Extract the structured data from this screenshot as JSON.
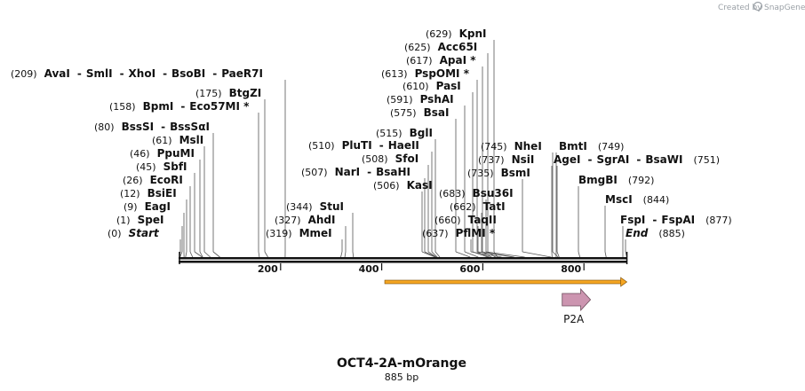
{
  "credit": {
    "prefix": "Created by",
    "brand": "SnapGene"
  },
  "title": "OCT4-2A-mOrange",
  "length_label": "885 bp",
  "ruler": {
    "start": 0,
    "end": 885,
    "ticks": [
      200,
      400,
      600,
      800
    ]
  },
  "sites": [
    {
      "pos": "(0)",
      "coord": 0,
      "names": [
        "Start"
      ],
      "italic": true
    },
    {
      "pos": "(1)",
      "coord": 1,
      "names": [
        "SpeI"
      ]
    },
    {
      "pos": "(9)",
      "coord": 9,
      "names": [
        "EagI"
      ]
    },
    {
      "pos": "(12)",
      "coord": 12,
      "names": [
        "BsiEI"
      ]
    },
    {
      "pos": "(26)",
      "coord": 26,
      "names": [
        "EcoRI"
      ]
    },
    {
      "pos": "(45)",
      "coord": 45,
      "names": [
        "SbfI"
      ]
    },
    {
      "pos": "(46)",
      "coord": 46,
      "names": [
        "PpuMI"
      ]
    },
    {
      "pos": "(61)",
      "coord": 61,
      "names": [
        "MslI"
      ]
    },
    {
      "pos": "(80)",
      "coord": 80,
      "names": [
        "BssSI",
        "BssSαI"
      ]
    },
    {
      "pos": "(158)",
      "coord": 158,
      "names": [
        "BpmI",
        "Eco57MI *"
      ]
    },
    {
      "pos": "(175)",
      "coord": 175,
      "names": [
        "BtgZI"
      ]
    },
    {
      "pos": "(209)",
      "coord": 209,
      "names": [
        "AvaI",
        "SmlI",
        "XhoI",
        "BsoBI",
        "PaeR7I"
      ]
    },
    {
      "pos": "(319)",
      "coord": 319,
      "names": [
        "MmeI"
      ]
    },
    {
      "pos": "(327)",
      "coord": 327,
      "names": [
        "AhdI"
      ]
    },
    {
      "pos": "(344)",
      "coord": 344,
      "names": [
        "StuI"
      ]
    },
    {
      "pos": "(506)",
      "coord": 506,
      "names": [
        "KasI"
      ]
    },
    {
      "pos": "(507)",
      "coord": 507,
      "names": [
        "NarI",
        "BsaHI"
      ]
    },
    {
      "pos": "(508)",
      "coord": 508,
      "names": [
        "SfoI"
      ]
    },
    {
      "pos": "(510)",
      "coord": 510,
      "names": [
        "PluTI",
        "HaeII"
      ]
    },
    {
      "pos": "(515)",
      "coord": 515,
      "names": [
        "BglI"
      ]
    },
    {
      "pos": "(575)",
      "coord": 575,
      "names": [
        "BsaI"
      ]
    },
    {
      "pos": "(591)",
      "coord": 591,
      "names": [
        "PshAI"
      ]
    },
    {
      "pos": "(610)",
      "coord": 610,
      "names": [
        "PasI"
      ]
    },
    {
      "pos": "(613)",
      "coord": 613,
      "names": [
        "PspOMI *"
      ]
    },
    {
      "pos": "(617)",
      "coord": 617,
      "names": [
        "ApaI *"
      ]
    },
    {
      "pos": "(625)",
      "coord": 625,
      "names": [
        "Acc65I"
      ]
    },
    {
      "pos": "(629)",
      "coord": 629,
      "names": [
        "KpnI"
      ]
    },
    {
      "pos": "(637)",
      "coord": 637,
      "names": [
        "PflMI *"
      ]
    },
    {
      "pos": "(660)",
      "coord": 660,
      "names": [
        "TaqII"
      ]
    },
    {
      "pos": "(662)",
      "coord": 662,
      "names": [
        "TatI"
      ]
    },
    {
      "pos": "(683)",
      "coord": 683,
      "names": [
        "Bsu36I"
      ]
    },
    {
      "pos": "(735)",
      "coord": 735,
      "names": [
        "BsmI"
      ]
    },
    {
      "pos": "(737)",
      "coord": 737,
      "names": [
        "NsiI"
      ]
    },
    {
      "pos": "(745)",
      "coord": 745,
      "names": [
        "NheI"
      ]
    },
    {
      "pos": "(749)",
      "coord": 749,
      "names": [
        "BmtI"
      ]
    },
    {
      "pos": "(751)",
      "coord": 751,
      "names": [
        "AgeI",
        "SgrAI",
        "BsaWI"
      ]
    },
    {
      "pos": "(792)",
      "coord": 792,
      "names": [
        "BmgBI"
      ]
    },
    {
      "pos": "(844)",
      "coord": 844,
      "names": [
        "MscI"
      ]
    },
    {
      "pos": "(877)",
      "coord": 877,
      "names": [
        "FspI",
        "FspAI"
      ]
    },
    {
      "pos": "(885)",
      "coord": 885,
      "names": [
        "End"
      ],
      "italic": true
    }
  ],
  "features": [
    {
      "name": "orf",
      "label": "",
      "start": 406,
      "end": 885,
      "color": "#f5a623"
    },
    {
      "name": "P2A",
      "label": "P2A",
      "start": 757,
      "end": 813,
      "color": "#cc95b0"
    }
  ]
}
